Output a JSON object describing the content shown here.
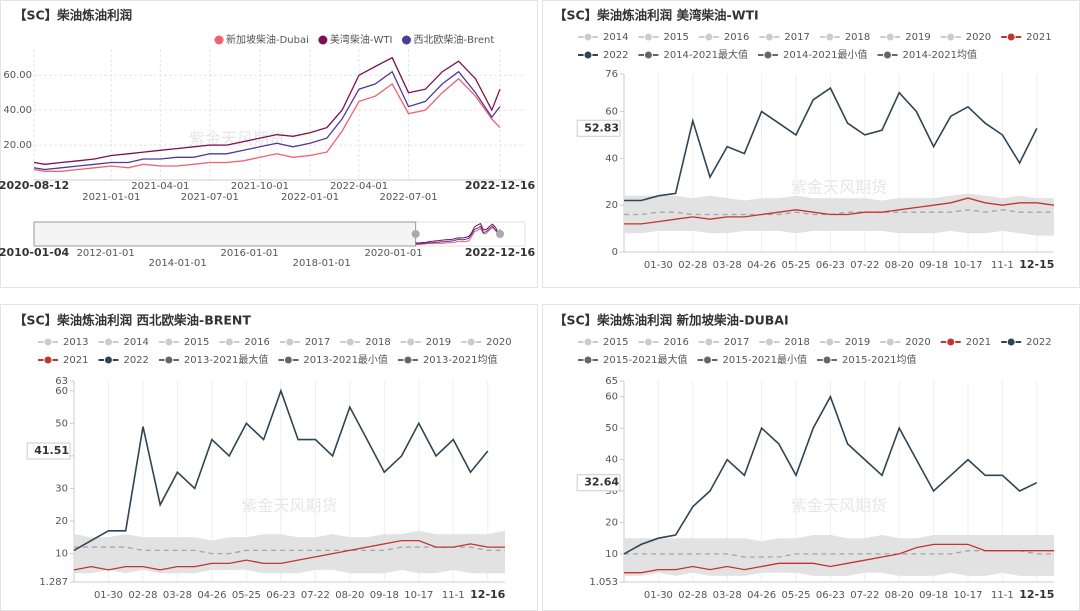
{
  "chart_data": [
    {
      "type": "line",
      "title": "【SC】柴油炼油利润",
      "watermark": "紫金天风期货",
      "x": [
        "2020-08-12",
        "2020-09-01",
        "2020-10-01",
        "2020-11-01",
        "2020-12-01",
        "2021-01-01",
        "2021-02-01",
        "2021-03-01",
        "2021-04-01",
        "2021-05-01",
        "2021-06-01",
        "2021-07-01",
        "2021-08-01",
        "2021-09-01",
        "2021-10-01",
        "2021-11-01",
        "2021-12-01",
        "2022-01-01",
        "2022-02-01",
        "2022-03-01",
        "2022-04-01",
        "2022-05-01",
        "2022-06-01",
        "2022-07-01",
        "2022-08-01",
        "2022-09-01",
        "2022-10-01",
        "2022-11-01",
        "2022-12-01",
        "2022-12-16"
      ],
      "xlim": [
        "2020-08-12",
        "2022-12-16"
      ],
      "xticks": [
        "2020-08-12",
        "2021-01-01",
        "2021-04-01",
        "2021-07-01",
        "2021-10-01",
        "2022-01-01",
        "2022-04-01",
        "2022-07-01",
        "2022-12-16"
      ],
      "ylim": [
        0,
        75
      ],
      "yticks": [
        {
          "value": 20,
          "label": "20.00"
        },
        {
          "value": 40,
          "label": "40.00"
        },
        {
          "value": 60,
          "label": "60.00"
        }
      ],
      "grid": true,
      "legend": "top-right",
      "series": [
        {
          "name": "新加坡柴油-Dubai",
          "color": "#f4606c",
          "values": [
            6,
            5,
            5,
            6,
            7,
            8,
            7,
            9,
            8,
            8,
            9,
            10,
            10,
            11,
            13,
            15,
            13,
            14,
            16,
            28,
            45,
            48,
            55,
            38,
            40,
            50,
            58,
            48,
            35,
            30
          ]
        },
        {
          "name": "美湾柴油-WTI",
          "color": "#7b1150",
          "values": [
            10,
            9,
            10,
            11,
            12,
            14,
            15,
            16,
            17,
            18,
            19,
            20,
            20,
            22,
            24,
            26,
            25,
            27,
            30,
            40,
            60,
            65,
            70,
            50,
            52,
            62,
            68,
            58,
            40,
            52
          ]
        },
        {
          "name": "西北欧柴油-Brent",
          "color": "#4f3a9a",
          "values": [
            7,
            6,
            7,
            8,
            9,
            10,
            10,
            12,
            12,
            13,
            13,
            15,
            15,
            17,
            19,
            21,
            19,
            21,
            24,
            35,
            52,
            55,
            62,
            42,
            45,
            55,
            62,
            50,
            36,
            42
          ]
        }
      ],
      "navigator": {
        "xlim": [
          "2010-01-04",
          "2022-12-16"
        ],
        "xticks": [
          "2010-01-04",
          "2012-01-01",
          "2014-01-01",
          "2016-01-01",
          "2018-01-01",
          "2020-01-01",
          "2022-12-16"
        ]
      }
    },
    {
      "type": "seasonal",
      "title": "【SC】柴油炼油利润 美湾柴油-WTI",
      "watermark": "紫金天风期货",
      "categories": [
        null,
        null,
        "01-30",
        null,
        "02-28",
        null,
        "03-28",
        null,
        "04-26",
        null,
        "05-25",
        null,
        "06-23",
        null,
        "07-22",
        null,
        "08-20",
        null,
        "09-18",
        null,
        "10-17",
        null,
        "11-1",
        null,
        "12-15",
        null
      ],
      "ylim": [
        0,
        76
      ],
      "yticks": [
        0,
        20,
        40,
        60,
        76
      ],
      "legend_inactive": [
        "2014",
        "2015",
        "2016",
        "2017",
        "2018",
        "2019",
        "2020"
      ],
      "series": [
        {
          "name": "2021",
          "color": "#c23531",
          "style": "solid",
          "values": [
            12,
            12,
            13,
            14,
            15,
            14,
            15,
            15,
            16,
            17,
            18,
            17,
            16,
            16,
            17,
            17,
            18,
            19,
            20,
            21,
            23,
            21,
            20,
            21,
            21,
            20
          ]
        },
        {
          "name": "2022",
          "color": "#2f4554",
          "style": "solid",
          "values": [
            22,
            22,
            24,
            25,
            56,
            32,
            45,
            42,
            60,
            55,
            50,
            65,
            70,
            55,
            50,
            52,
            68,
            60,
            45,
            58,
            62,
            55,
            50,
            38,
            52.83,
            null
          ]
        },
        {
          "name": "2014-2021最大值",
          "color": "#666666",
          "style": "band",
          "values": [
            24,
            24,
            24,
            24,
            23,
            24,
            23,
            22,
            23,
            23,
            24,
            23,
            23,
            23,
            23,
            22,
            23,
            23,
            23,
            24,
            25,
            24,
            23,
            24,
            23,
            23
          ]
        },
        {
          "name": "2014-2021最小值",
          "color": "#666666",
          "style": "band",
          "values": [
            8,
            8,
            9,
            9,
            9,
            8,
            8,
            9,
            9,
            9,
            8,
            9,
            9,
            9,
            9,
            9,
            8,
            8,
            8,
            9,
            8,
            8,
            9,
            8,
            7,
            7
          ]
        },
        {
          "name": "2014-2021均值",
          "color": "#666666",
          "style": "dashed",
          "values": [
            16,
            16,
            17,
            17,
            16,
            16,
            16,
            16,
            16,
            16,
            17,
            16,
            16,
            17,
            17,
            17,
            17,
            17,
            17,
            17,
            18,
            17,
            18,
            17,
            17,
            17
          ]
        }
      ]
    },
    {
      "type": "seasonal",
      "title": "【SC】柴油炼油利润 西北欧柴油-BRENT",
      "watermark": "紫金天风期货",
      "categories": [
        null,
        null,
        "01-30",
        null,
        "02-28",
        null,
        "03-28",
        null,
        "04-26",
        null,
        "05-25",
        null,
        "06-23",
        null,
        "07-22",
        null,
        "08-20",
        null,
        "09-18",
        null,
        "10-17",
        null,
        "11-1",
        null,
        "12-16",
        null
      ],
      "ylim": [
        1.287,
        63
      ],
      "yticks": [
        1.287,
        10,
        20,
        30,
        40,
        50,
        60,
        63
      ],
      "legend_inactive": [
        "2013",
        "2014",
        "2015",
        "2016",
        "2017",
        "2018",
        "2019",
        "2020"
      ],
      "series": [
        {
          "name": "2021",
          "color": "#c23531",
          "style": "solid",
          "values": [
            5,
            6,
            5,
            6,
            6,
            5,
            6,
            6,
            7,
            7,
            8,
            7,
            7,
            8,
            9,
            10,
            11,
            12,
            13,
            14,
            14,
            12,
            12,
            13,
            12,
            12
          ]
        },
        {
          "name": "2022",
          "color": "#2f4554",
          "style": "solid",
          "values": [
            11,
            14,
            17,
            17,
            49,
            25,
            35,
            30,
            45,
            40,
            50,
            45,
            60,
            45,
            45,
            40,
            55,
            45,
            35,
            40,
            50,
            40,
            45,
            35,
            41.51,
            null
          ]
        },
        {
          "name": "2013-2021最大值",
          "color": "#666666",
          "style": "band",
          "values": [
            16,
            15,
            15,
            16,
            15,
            15,
            15,
            15,
            14,
            15,
            15,
            16,
            16,
            15,
            15,
            16,
            15,
            15,
            16,
            16,
            17,
            16,
            16,
            16,
            16,
            17
          ]
        },
        {
          "name": "2013-2021最小值",
          "color": "#666666",
          "style": "band",
          "values": [
            4,
            4,
            5,
            4,
            5,
            4,
            4,
            4,
            5,
            5,
            5,
            4,
            4,
            4,
            5,
            5,
            4,
            4,
            4,
            5,
            4,
            4,
            5,
            4,
            4,
            4
          ]
        },
        {
          "name": "2013-2021均值",
          "color": "#666666",
          "style": "dashed",
          "values": [
            12,
            12,
            12,
            12,
            11,
            11,
            11,
            11,
            10,
            10,
            11,
            11,
            11,
            11,
            11,
            11,
            11,
            11,
            11,
            12,
            12,
            12,
            12,
            12,
            11,
            11
          ]
        }
      ]
    },
    {
      "type": "seasonal",
      "title": "【SC】柴油炼油利润 新加坡柴油-DUBAI",
      "watermark": "紫金天风期货",
      "categories": [
        null,
        null,
        "01-30",
        null,
        "02-28",
        null,
        "03-28",
        null,
        "04-26",
        null,
        "05-25",
        null,
        "06-23",
        null,
        "07-22",
        null,
        "08-20",
        null,
        "09-18",
        null,
        "10-17",
        null,
        "11-1",
        null,
        "12-15",
        null
      ],
      "ylim": [
        1.053,
        65
      ],
      "yticks": [
        1.053,
        10,
        20,
        30,
        40,
        50,
        60,
        65
      ],
      "legend_inactive": [
        "2015",
        "2016",
        "2017",
        "2018",
        "2019",
        "2020"
      ],
      "series": [
        {
          "name": "2021",
          "color": "#c23531",
          "style": "solid",
          "values": [
            4,
            4,
            5,
            5,
            6,
            5,
            6,
            5,
            6,
            7,
            7,
            7,
            6,
            7,
            8,
            9,
            10,
            12,
            13,
            13,
            13,
            11,
            11,
            11,
            11,
            11
          ]
        },
        {
          "name": "2022",
          "color": "#2f4554",
          "style": "solid",
          "values": [
            10,
            13,
            15,
            16,
            25,
            30,
            40,
            35,
            50,
            45,
            35,
            50,
            60,
            45,
            40,
            35,
            50,
            40,
            30,
            35,
            40,
            35,
            35,
            30,
            32.64,
            null
          ]
        },
        {
          "name": "2015-2021最大值",
          "color": "#666666",
          "style": "band",
          "values": [
            15,
            15,
            15,
            15,
            15,
            15,
            15,
            15,
            14,
            15,
            15,
            16,
            16,
            15,
            15,
            16,
            15,
            15,
            16,
            16,
            16,
            16,
            16,
            16,
            16,
            16
          ]
        },
        {
          "name": "2015-2021最小值",
          "color": "#666666",
          "style": "band",
          "values": [
            3,
            3,
            4,
            3,
            4,
            3,
            3,
            3,
            4,
            4,
            4,
            3,
            3,
            3,
            4,
            4,
            3,
            3,
            3,
            4,
            3,
            3,
            4,
            3,
            3,
            3
          ]
        },
        {
          "name": "2015-2021均值",
          "color": "#666666",
          "style": "dashed",
          "values": [
            10,
            10,
            10,
            10,
            10,
            10,
            10,
            9,
            9,
            9,
            10,
            10,
            10,
            10,
            10,
            10,
            10,
            10,
            10,
            10,
            11,
            11,
            11,
            11,
            10,
            10
          ]
        }
      ]
    }
  ]
}
